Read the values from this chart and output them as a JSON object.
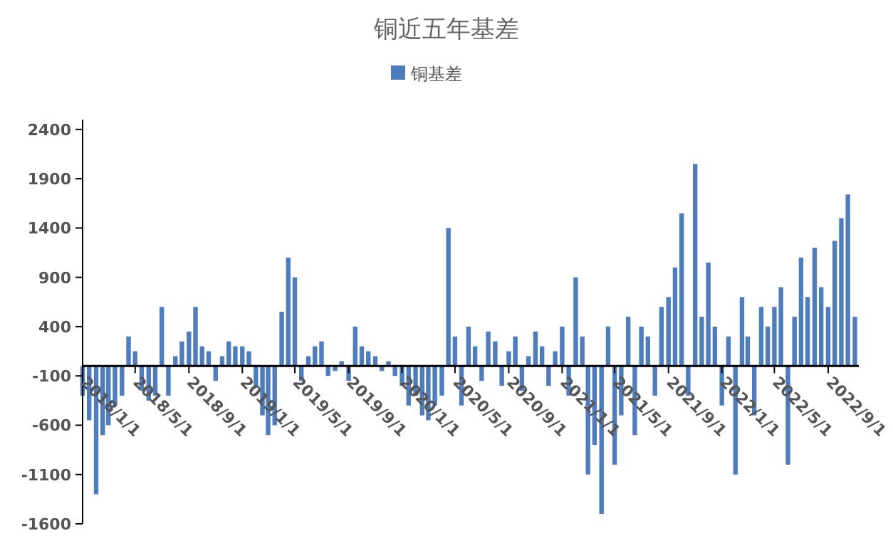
{
  "chart_data": {
    "type": "bar",
    "title": "铜近五年基差",
    "legend": "top",
    "xlim": [
      "2018-01-01",
      "2022-11-10"
    ],
    "ylim": [
      -1600,
      2500
    ],
    "yticks": [
      -1600,
      -1100,
      -600,
      -100,
      400,
      900,
      1400,
      1900,
      2400
    ],
    "xticks": [
      {
        "value": "2018-01-01",
        "label": "2018/1/1"
      },
      {
        "value": "2018-05-01",
        "label": "2018/5/1"
      },
      {
        "value": "2018-09-01",
        "label": "2018/9/1"
      },
      {
        "value": "2019-01-01",
        "label": "2019/1/1"
      },
      {
        "value": "2019-05-01",
        "label": "2019/5/1"
      },
      {
        "value": "2019-09-01",
        "label": "2019/9/1"
      },
      {
        "value": "2020-01-01",
        "label": "2020/1/1"
      },
      {
        "value": "2020-05-01",
        "label": "2020/5/1"
      },
      {
        "value": "2020-09-01",
        "label": "2020/9/1"
      },
      {
        "value": "2021-01-01",
        "label": "2021/1/1"
      },
      {
        "value": "2021-05-01",
        "label": "2021/5/1"
      },
      {
        "value": "2021-09-01",
        "label": "2021/9/1"
      },
      {
        "value": "2022-01-01",
        "label": "2022/1/1"
      },
      {
        "value": "2022-05-01",
        "label": "2022/5/1"
      },
      {
        "value": "2022-09-01",
        "label": "2022/9/1"
      }
    ],
    "x": [
      "2018-01-01",
      "2018-01-16",
      "2018-02-01",
      "2018-02-16",
      "2018-03-01",
      "2018-03-16",
      "2018-04-01",
      "2018-04-16",
      "2018-05-01",
      "2018-05-16",
      "2018-06-01",
      "2018-06-16",
      "2018-07-01",
      "2018-07-16",
      "2018-08-01",
      "2018-08-16",
      "2018-09-01",
      "2018-09-16",
      "2018-10-01",
      "2018-10-16",
      "2018-11-01",
      "2018-11-16",
      "2018-12-01",
      "2018-12-16",
      "2019-01-01",
      "2019-01-16",
      "2019-02-01",
      "2019-02-16",
      "2019-03-01",
      "2019-03-16",
      "2019-04-01",
      "2019-04-16",
      "2019-05-01",
      "2019-05-16",
      "2019-06-01",
      "2019-06-16",
      "2019-07-01",
      "2019-07-16",
      "2019-08-01",
      "2019-08-16",
      "2019-09-01",
      "2019-09-16",
      "2019-10-01",
      "2019-10-16",
      "2019-11-01",
      "2019-11-16",
      "2019-12-01",
      "2019-12-16",
      "2020-01-01",
      "2020-01-16",
      "2020-02-01",
      "2020-02-16",
      "2020-03-01",
      "2020-03-16",
      "2020-04-01",
      "2020-04-16",
      "2020-05-01",
      "2020-05-16",
      "2020-06-01",
      "2020-06-16",
      "2020-07-01",
      "2020-07-16",
      "2020-08-01",
      "2020-08-16",
      "2020-09-01",
      "2020-09-16",
      "2020-10-01",
      "2020-10-16",
      "2020-11-01",
      "2020-11-16",
      "2020-12-01",
      "2020-12-16",
      "2021-01-01",
      "2021-01-16",
      "2021-02-01",
      "2021-02-16",
      "2021-03-01",
      "2021-03-16",
      "2021-04-01",
      "2021-04-16",
      "2021-05-01",
      "2021-05-16",
      "2021-06-01",
      "2021-06-16",
      "2021-07-01",
      "2021-07-16",
      "2021-08-01",
      "2021-08-16",
      "2021-09-01",
      "2021-09-16",
      "2021-10-01",
      "2021-10-16",
      "2021-11-01",
      "2021-11-16",
      "2021-12-01",
      "2021-12-16",
      "2022-01-01",
      "2022-01-16",
      "2022-02-01",
      "2022-02-16",
      "2022-03-01",
      "2022-03-16",
      "2022-04-01",
      "2022-04-16",
      "2022-05-01",
      "2022-05-16",
      "2022-06-01",
      "2022-06-16",
      "2022-07-01",
      "2022-07-16",
      "2022-08-01",
      "2022-08-16",
      "2022-09-01",
      "2022-09-16",
      "2022-10-01",
      "2022-10-16",
      "2022-11-01"
    ],
    "series": [
      {
        "name": "铜基差",
        "color": "#4e7dbf",
        "values": [
          -300,
          -550,
          -1300,
          -700,
          -600,
          -400,
          -300,
          300,
          150,
          -250,
          -350,
          -300,
          600,
          -300,
          100,
          250,
          350,
          600,
          200,
          150,
          -150,
          100,
          250,
          200,
          200,
          150,
          -200,
          -500,
          -700,
          -600,
          550,
          1100,
          900,
          -150,
          100,
          200,
          250,
          -100,
          -50,
          50,
          -150,
          400,
          200,
          150,
          100,
          -50,
          50,
          -100,
          -200,
          -400,
          -300,
          -500,
          -550,
          -400,
          -300,
          1400,
          300,
          -400,
          400,
          200,
          -150,
          350,
          250,
          -200,
          150,
          300,
          -250,
          100,
          350,
          200,
          -200,
          150,
          400,
          -300,
          900,
          300,
          -1100,
          -800,
          -1500,
          400,
          -1000,
          -500,
          500,
          -700,
          400,
          300,
          -300,
          600,
          700,
          1000,
          1550,
          -300,
          2050,
          500,
          1050,
          400,
          -400,
          300,
          -1100,
          700,
          300,
          -500,
          600,
          400,
          600,
          800,
          -1000,
          500,
          1100,
          700,
          1200,
          800,
          600,
          1270,
          1500,
          1740,
          500
        ]
      }
    ]
  }
}
